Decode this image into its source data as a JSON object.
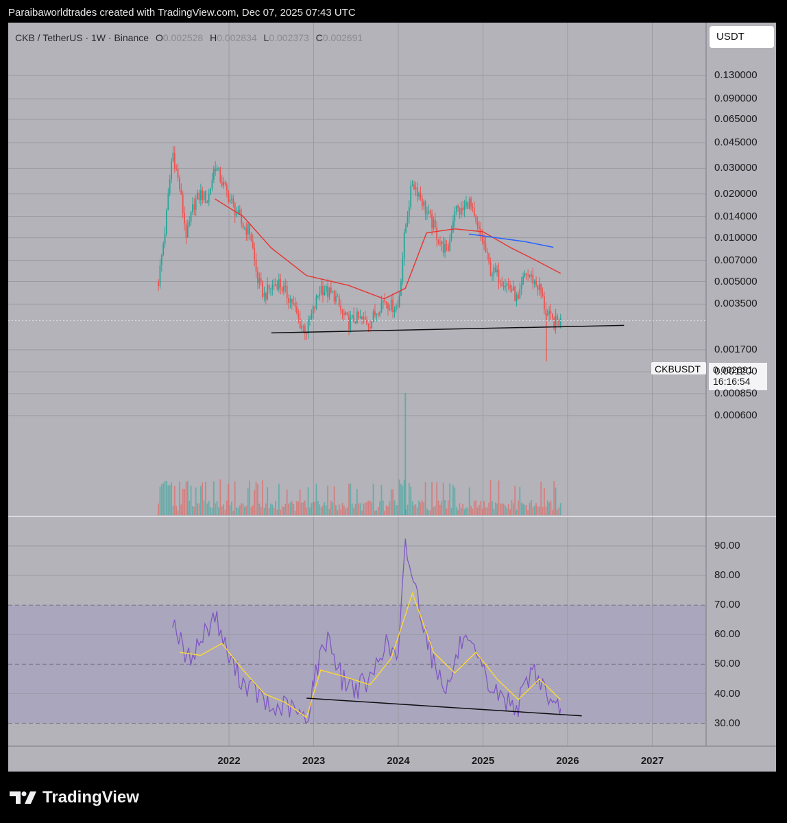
{
  "header": {
    "text": "Paraibaworldtrades created with TradingView.com, Dec 07, 2025 07:43 UTC"
  },
  "legend": {
    "symbol": "CKB / TetherUS · 1W · Binance",
    "o_label": "O",
    "o_value": "0.002528",
    "h_label": "H",
    "h_value": "0.002834",
    "l_label": "L",
    "l_value": "0.002373",
    "c_label": "C",
    "c_value": "0.002691"
  },
  "currency_label": "USDT",
  "price_tag": {
    "symbol": "CKBUSDT",
    "price": "0.002691",
    "countdown": "16:16:54"
  },
  "footer": {
    "brand": "TradingView"
  },
  "colors": {
    "bull": "#26a69a",
    "bear": "#ef5350",
    "ma_red": "#e53935",
    "ma_blue": "#2962ff",
    "rsi": "#7e57c2",
    "rsi_ma": "#fdd835",
    "rsi_band": "#9c8fc9"
  },
  "chart_data": [
    {
      "type": "candlestick",
      "pair": "CKB / TetherUS",
      "timeframe": "1W",
      "exchange": "Binance",
      "y_scale": "log",
      "yticks": [
        "0.130000",
        "0.090000",
        "0.065000",
        "0.045000",
        "0.030000",
        "0.020000",
        "0.014000",
        "0.010000",
        "0.007000",
        "0.005000",
        "0.003500",
        "0.001700",
        "0.001200",
        "0.000850",
        "0.000600"
      ],
      "xticks": [
        "2022",
        "2023",
        "2024",
        "2025",
        "2026",
        "2027"
      ],
      "last_price": 0.002691,
      "price_path": [
        [
          "2021-03",
          0.005
        ],
        [
          "2021-04",
          0.012
        ],
        [
          "2021-05",
          0.04
        ],
        [
          "2021-06",
          0.022
        ],
        [
          "2021-07",
          0.01
        ],
        [
          "2021-08",
          0.017
        ],
        [
          "2021-09",
          0.02
        ],
        [
          "2021-10",
          0.018
        ],
        [
          "2021-11",
          0.032
        ],
        [
          "2021-12",
          0.024
        ],
        [
          "2022-01",
          0.019
        ],
        [
          "2022-02",
          0.015
        ],
        [
          "2022-03",
          0.012
        ],
        [
          "2022-04",
          0.011
        ],
        [
          "2022-05",
          0.0052
        ],
        [
          "2022-06",
          0.004
        ],
        [
          "2022-07",
          0.0046
        ],
        [
          "2022-08",
          0.005
        ],
        [
          "2022-09",
          0.0042
        ],
        [
          "2022-10",
          0.0036
        ],
        [
          "2022-11",
          0.0026
        ],
        [
          "2022-12",
          0.0023
        ],
        [
          "2023-01",
          0.0032
        ],
        [
          "2023-02",
          0.0046
        ],
        [
          "2023-03",
          0.0042
        ],
        [
          "2023-04",
          0.004
        ],
        [
          "2023-05",
          0.003
        ],
        [
          "2023-06",
          0.0026
        ],
        [
          "2023-07",
          0.0028
        ],
        [
          "2023-08",
          0.0027
        ],
        [
          "2023-09",
          0.0026
        ],
        [
          "2023-10",
          0.0032
        ],
        [
          "2023-11",
          0.0038
        ],
        [
          "2023-12",
          0.0034
        ],
        [
          "2024-01",
          0.0034
        ],
        [
          "2024-02",
          0.012
        ],
        [
          "2024-03",
          0.024
        ],
        [
          "2024-04",
          0.02
        ],
        [
          "2024-05",
          0.015
        ],
        [
          "2024-06",
          0.012
        ],
        [
          "2024-07",
          0.009
        ],
        [
          "2024-08",
          0.008
        ],
        [
          "2024-09",
          0.016
        ],
        [
          "2024-10",
          0.015
        ],
        [
          "2024-11",
          0.018
        ],
        [
          "2024-12",
          0.012
        ],
        [
          "2025-01",
          0.0095
        ],
        [
          "2025-02",
          0.006
        ],
        [
          "2025-03",
          0.0055
        ],
        [
          "2025-04",
          0.005
        ],
        [
          "2025-05",
          0.0045
        ],
        [
          "2025-06",
          0.0036
        ],
        [
          "2025-07",
          0.0058
        ],
        [
          "2025-08",
          0.0052
        ],
        [
          "2025-09",
          0.0045
        ],
        [
          "2025-10",
          0.003
        ],
        [
          "2025-11",
          0.0026
        ],
        [
          "2025-12",
          0.002691
        ]
      ],
      "ma_red": [
        [
          "2021-11",
          0.0185
        ],
        [
          "2022-03",
          0.014
        ],
        [
          "2022-07",
          0.0085
        ],
        [
          "2022-12",
          0.0055
        ],
        [
          "2023-06",
          0.0047
        ],
        [
          "2023-11",
          0.0038
        ],
        [
          "2024-02",
          0.0045
        ],
        [
          "2024-05",
          0.0108
        ],
        [
          "2024-09",
          0.0115
        ],
        [
          "2025-01",
          0.011
        ],
        [
          "2025-05",
          0.0085
        ],
        [
          "2025-08",
          0.0072
        ],
        [
          "2025-12",
          0.0057
        ]
      ],
      "ma_blue": [
        [
          "2024-11",
          0.0106
        ],
        [
          "2025-03",
          0.01
        ],
        [
          "2025-07",
          0.0094
        ],
        [
          "2025-11",
          0.0086
        ]
      ],
      "support_line": [
        [
          "2022-07",
          0.00222
        ],
        [
          "2026-09",
          0.0025
        ]
      ]
    },
    {
      "type": "line",
      "indicator": "RSI",
      "yticks": [
        "90.00",
        "80.00",
        "70.00",
        "60.00",
        "50.00",
        "40.00",
        "30.00"
      ],
      "bands": {
        "upper": 70,
        "middle": 50,
        "lower": 30
      },
      "series": [
        {
          "role": "rsi",
          "values": [
            [
              "2021-05",
              66
            ],
            [
              "2021-07",
              51
            ],
            [
              "2021-09",
              58
            ],
            [
              "2021-11",
              67
            ],
            [
              "2022-01",
              52
            ],
            [
              "2022-03",
              44
            ],
            [
              "2022-05",
              40
            ],
            [
              "2022-07",
              34
            ],
            [
              "2022-09",
              36
            ],
            [
              "2022-11",
              33
            ],
            [
              "2022-12",
              30
            ],
            [
              "2023-01",
              45
            ],
            [
              "2023-03",
              60
            ],
            [
              "2023-05",
              45
            ],
            [
              "2023-07",
              42
            ],
            [
              "2023-09",
              44
            ],
            [
              "2023-11",
              57
            ],
            [
              "2024-01",
              52
            ],
            [
              "2024-02",
              90
            ],
            [
              "2024-04",
              70
            ],
            [
              "2024-06",
              50
            ],
            [
              "2024-08",
              42
            ],
            [
              "2024-10",
              58
            ],
            [
              "2024-12",
              52
            ],
            [
              "2025-02",
              42
            ],
            [
              "2025-04",
              38
            ],
            [
              "2025-06",
              36
            ],
            [
              "2025-08",
              49
            ],
            [
              "2025-10",
              41
            ],
            [
              "2025-11",
              34
            ],
            [
              "2025-12",
              35
            ]
          ]
        },
        {
          "role": "rsi_ma",
          "values": [
            [
              "2021-06",
              54
            ],
            [
              "2021-09",
              53
            ],
            [
              "2021-12",
              57
            ],
            [
              "2022-03",
              48
            ],
            [
              "2022-06",
              40
            ],
            [
              "2022-09",
              37
            ],
            [
              "2022-12",
              32
            ],
            [
              "2023-02",
              48
            ],
            [
              "2023-05",
              46
            ],
            [
              "2023-09",
              43
            ],
            [
              "2023-12",
              52
            ],
            [
              "2024-03",
              74
            ],
            [
              "2024-06",
              54
            ],
            [
              "2024-09",
              47
            ],
            [
              "2024-12",
              54
            ],
            [
              "2025-03",
              45
            ],
            [
              "2025-06",
              38
            ],
            [
              "2025-09",
              45
            ],
            [
              "2025-12",
              38
            ]
          ]
        }
      ],
      "trend_line": [
        [
          "2022-12",
          38.5
        ],
        [
          "2026-03",
          32.5
        ]
      ]
    }
  ]
}
